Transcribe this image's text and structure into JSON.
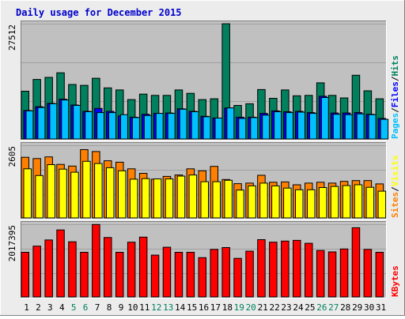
{
  "colors": {
    "outer_bg": "#ECECEC",
    "plot_bg": "#C0C0C0",
    "title_color": "#0000CC",
    "grid": "#A0A0A0",
    "hits": "#00805C",
    "files": "#0000FF",
    "pages": "#00C0FF",
    "visits": "#FFFF00",
    "sites": "#FF8000",
    "kbytes": "#FF0000",
    "weekend_label": "#00805C",
    "weekday_label": "#000000"
  },
  "chart_data": {
    "type": "bar",
    "title": "Daily usage for December 2015",
    "x": [
      "1",
      "2",
      "3",
      "4",
      "5",
      "6",
      "7",
      "8",
      "9",
      "10",
      "11",
      "12",
      "13",
      "14",
      "15",
      "16",
      "17",
      "18",
      "19",
      "20",
      "21",
      "22",
      "23",
      "24",
      "25",
      "26",
      "27",
      "28",
      "29",
      "30",
      "31"
    ],
    "weekend_days": [
      "5",
      "6",
      "12",
      "13",
      "19",
      "20",
      "26",
      "27"
    ],
    "panels": [
      {
        "id": "hits-files-pages",
        "ymax_label": "27512",
        "ymax": 27512,
        "legend": [
          {
            "name": "Pages",
            "color": "pages"
          },
          {
            "name": "/",
            "color": "weekday_label"
          },
          {
            "name": "Files",
            "color": "files"
          },
          {
            "name": "/",
            "color": "weekday_label"
          },
          {
            "name": "Hits",
            "color": "hits"
          }
        ],
        "series": [
          {
            "name": "Hits",
            "color": "hits",
            "values": [
              11400,
              14200,
              14700,
              15800,
              13000,
              12800,
              14500,
              12200,
              11700,
              9400,
              10700,
              10400,
              10400,
              11700,
              10900,
              9400,
              9600,
              27500,
              8000,
              8400,
              11800,
              9700,
              11700,
              10300,
              10400,
              13400,
              10400,
              9800,
              15200,
              11500,
              9600
            ]
          },
          {
            "name": "Files",
            "color": "files",
            "values": [
              6800,
              7700,
              8500,
              9500,
              8100,
              6600,
              7300,
              6600,
              5500,
              5200,
              5900,
              6100,
              6200,
              7200,
              6600,
              5400,
              5000,
              7400,
              5200,
              5200,
              6100,
              6700,
              6500,
              6600,
              6300,
              10200,
              6200,
              6200,
              6300,
              5900,
              4900
            ]
          },
          {
            "name": "Pages",
            "color": "pages",
            "values": [
              6700,
              7500,
              8400,
              9300,
              8000,
              6500,
              6300,
              6300,
              5800,
              5100,
              5600,
              6100,
              6100,
              7100,
              6500,
              5300,
              5000,
              7400,
              4900,
              5100,
              5700,
              6500,
              6300,
              6400,
              6100,
              9900,
              5900,
              5800,
              6000,
              5800,
              4700
            ]
          }
        ]
      },
      {
        "id": "sites-visits",
        "ymax_label": "2605",
        "ymax": 2605,
        "legend": [
          {
            "name": "Sites",
            "color": "sites"
          },
          {
            "name": "/",
            "color": "weekday_label"
          },
          {
            "name": "Visits",
            "color": "visits"
          }
        ],
        "series": [
          {
            "name": "Sites",
            "color": "sites",
            "values": [
              2175,
              2130,
              2190,
              1920,
              1860,
              2450,
              2380,
              2050,
              2000,
              1760,
              1600,
              1390,
              1490,
              1540,
              1760,
              1690,
              1850,
              1380,
              1230,
              1250,
              1530,
              1280,
              1290,
              1190,
              1250,
              1280,
              1250,
              1310,
              1340,
              1340,
              1220
            ]
          },
          {
            "name": "Visits",
            "color": "visits",
            "values": [
              1760,
              1520,
              1910,
              1750,
              1640,
              2030,
              1950,
              1800,
              1690,
              1390,
              1410,
              1400,
              1400,
              1500,
              1540,
              1300,
              1300,
              1350,
              1000,
              1150,
              1250,
              1150,
              1070,
              1010,
              1010,
              1090,
              1130,
              1160,
              1190,
              1100,
              960
            ]
          }
        ]
      },
      {
        "id": "kbytes",
        "ymax_label": "2017395",
        "ymax": 2017395,
        "legend": [
          {
            "name": "KBytes",
            "color": "kbytes"
          }
        ],
        "series": [
          {
            "name": "KBytes",
            "color": "kbytes",
            "values": [
              1240000,
              1410000,
              1580000,
              1860000,
              1530000,
              1240000,
              2010000,
              1650000,
              1240000,
              1520000,
              1660000,
              1160000,
              1380000,
              1240000,
              1240000,
              1090000,
              1320000,
              1370000,
              1070000,
              1270000,
              1590000,
              1520000,
              1550000,
              1570000,
              1490000,
              1290000,
              1250000,
              1330000,
              1920000,
              1320000,
              1240000
            ]
          }
        ]
      }
    ]
  }
}
